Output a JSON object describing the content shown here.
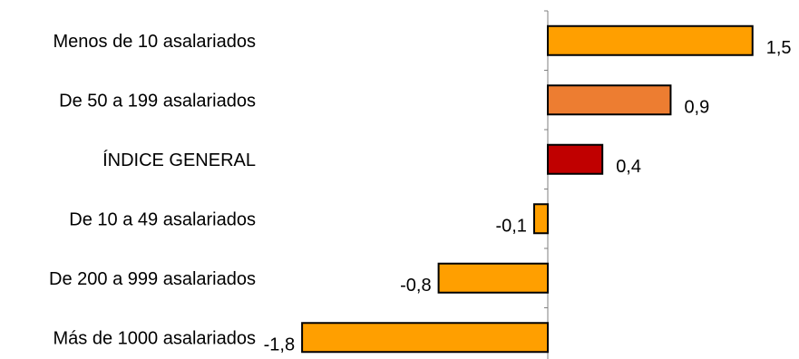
{
  "chart_data": {
    "type": "bar",
    "orientation": "horizontal",
    "title": "",
    "xlabel": "",
    "ylabel": "",
    "xlim": [
      -1.8,
      1.5
    ],
    "grid": false,
    "legend": "none",
    "categories": [
      "Menos de 10 asalariados",
      "De 50 a 199 asalariados",
      "ÍNDICE GENERAL",
      "De 10 a 49 asalariados",
      "De 200 a 999 asalariados",
      "Más de 1000 asalariados"
    ],
    "values": [
      1.5,
      0.9,
      0.4,
      -0.1,
      -0.8,
      -1.8
    ],
    "value_labels": [
      "1,5",
      "0,9",
      "0,4",
      "-0,1",
      "-0,8",
      "-1,8"
    ],
    "colors": [
      "#FF9F00",
      "#ED7D31",
      "#C00000",
      "#FF9F00",
      "#FF9F00",
      "#FF9F00"
    ]
  }
}
